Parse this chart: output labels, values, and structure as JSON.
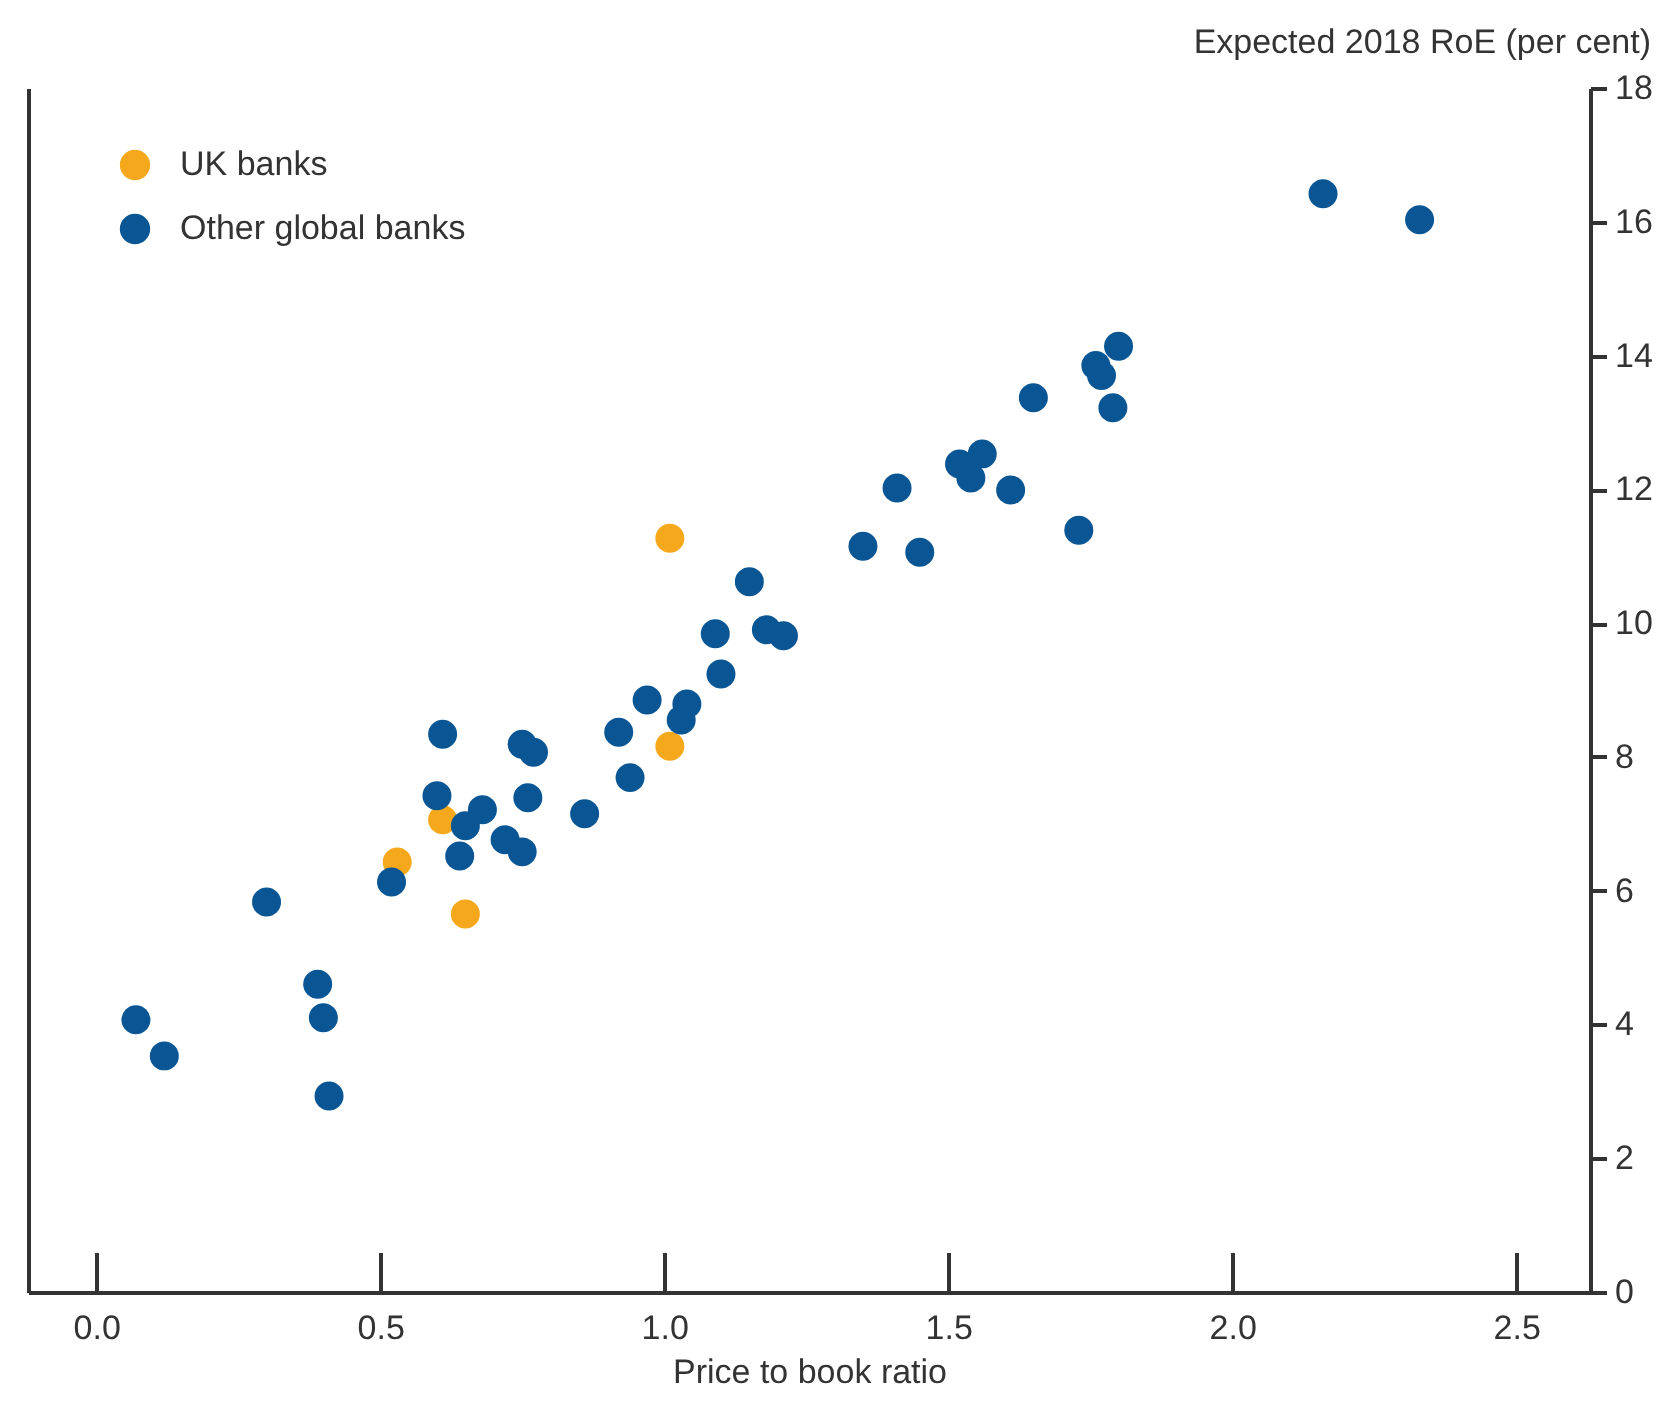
{
  "chart_data": {
    "type": "scatter",
    "xlabel": "Price to book ratio",
    "ylabel": "Expected 2018 RoE (per cent)",
    "xlim": [
      -0.12,
      2.63
    ],
    "xticks": [
      {
        "value": 0,
        "label": "0.0"
      },
      0.5,
      {
        "value": 1,
        "label": "1.0"
      },
      1.5,
      {
        "value": 2,
        "label": "2.0"
      },
      2.5
    ],
    "ylim": [
      0,
      18
    ],
    "yticks": [
      0,
      2,
      4,
      6,
      8,
      10,
      12,
      14,
      16,
      18
    ],
    "grid": false,
    "legend": "top left",
    "marker": "circle",
    "series": [
      {
        "name": "UK banks",
        "color": "#f5a81c",
        "x": [
          0.53,
          0.61,
          0.65,
          1.01,
          1.01
        ],
        "values": [
          6.43,
          7.06,
          5.65,
          11.27,
          8.16
        ]
      },
      {
        "name": "Other global banks",
        "color": "#0a5594",
        "x": [
          0.07,
          0.12,
          0.3,
          0.39,
          0.4,
          0.41,
          0.52,
          0.6,
          0.61,
          0.65,
          0.68,
          0.64,
          0.75,
          0.77,
          0.76,
          0.72,
          0.75,
          0.86,
          0.92,
          0.94,
          0.97,
          1.04,
          1.03,
          1.09,
          1.1,
          1.15,
          1.18,
          1.21,
          1.35,
          1.41,
          1.45,
          1.52,
          1.56,
          1.54,
          1.61,
          1.73,
          1.65,
          1.76,
          1.77,
          1.8,
          1.79,
          2.16,
          2.33
        ],
        "values": [
          4.07,
          3.53,
          5.83,
          4.6,
          4.1,
          2.93,
          6.13,
          7.42,
          8.34,
          6.97,
          7.21,
          6.52,
          8.19,
          8.07,
          7.39,
          6.76,
          6.58,
          7.15,
          8.37,
          7.69,
          8.85,
          8.79,
          8.55,
          9.84,
          9.24,
          10.62,
          9.9,
          9.81,
          11.15,
          12.02,
          11.06,
          12.38,
          12.53,
          12.17,
          11.99,
          11.39,
          13.37,
          13.85,
          13.7,
          14.14,
          13.22,
          16.42,
          16.03
        ]
      }
    ]
  }
}
